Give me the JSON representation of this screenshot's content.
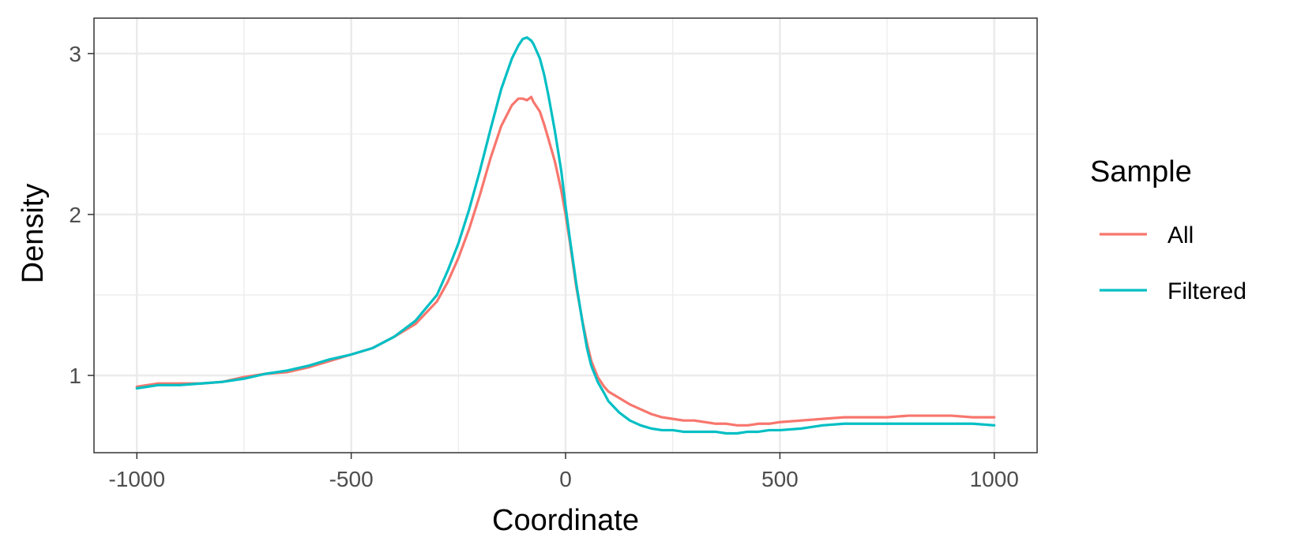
{
  "chart_data": {
    "type": "line",
    "title": "",
    "xlabel": "Coordinate",
    "ylabel": "Density",
    "xlim": [
      -1100,
      1100
    ],
    "ylim": [
      0.52,
      3.22
    ],
    "x_ticks": [
      -1000,
      -500,
      0,
      500,
      1000
    ],
    "x_tick_labels": [
      "-1000",
      "-500",
      "0",
      "500",
      "1000"
    ],
    "y_ticks": [
      1,
      2,
      3
    ],
    "y_tick_labels": [
      "1",
      "2",
      "3"
    ],
    "grid": true,
    "legend": {
      "title": "Sample",
      "placement": "right"
    },
    "series": [
      {
        "name": "All",
        "color": "#F8766D",
        "x": [
          -1000,
          -950,
          -900,
          -850,
          -800,
          -750,
          -700,
          -650,
          -600,
          -550,
          -500,
          -450,
          -400,
          -350,
          -300,
          -275,
          -250,
          -225,
          -200,
          -175,
          -150,
          -125,
          -110,
          -100,
          -90,
          -80,
          -75,
          -60,
          -50,
          -40,
          -25,
          -10,
          0,
          10,
          25,
          40,
          50,
          60,
          75,
          90,
          100,
          125,
          150,
          175,
          200,
          225,
          250,
          275,
          300,
          325,
          350,
          375,
          400,
          425,
          450,
          475,
          500,
          550,
          600,
          650,
          700,
          750,
          800,
          850,
          900,
          950,
          1000
        ],
        "values": [
          0.93,
          0.95,
          0.95,
          0.95,
          0.96,
          0.99,
          1.01,
          1.02,
          1.05,
          1.09,
          1.13,
          1.17,
          1.24,
          1.32,
          1.46,
          1.58,
          1.73,
          1.91,
          2.12,
          2.35,
          2.55,
          2.68,
          2.72,
          2.72,
          2.71,
          2.73,
          2.7,
          2.64,
          2.56,
          2.47,
          2.33,
          2.15,
          2.0,
          1.83,
          1.55,
          1.33,
          1.2,
          1.09,
          0.99,
          0.93,
          0.9,
          0.86,
          0.82,
          0.79,
          0.76,
          0.74,
          0.73,
          0.72,
          0.72,
          0.71,
          0.7,
          0.7,
          0.69,
          0.69,
          0.7,
          0.7,
          0.71,
          0.72,
          0.73,
          0.74,
          0.74,
          0.74,
          0.75,
          0.75,
          0.75,
          0.74,
          0.74
        ]
      },
      {
        "name": "Filtered",
        "color": "#00BFC4",
        "x": [
          -1000,
          -950,
          -900,
          -850,
          -800,
          -750,
          -700,
          -650,
          -600,
          -550,
          -500,
          -450,
          -400,
          -350,
          -300,
          -275,
          -250,
          -225,
          -200,
          -175,
          -150,
          -125,
          -110,
          -100,
          -90,
          -80,
          -75,
          -60,
          -50,
          -40,
          -25,
          -10,
          0,
          10,
          25,
          40,
          50,
          60,
          75,
          90,
          100,
          125,
          150,
          175,
          200,
          225,
          250,
          275,
          300,
          325,
          350,
          375,
          400,
          425,
          450,
          475,
          500,
          550,
          600,
          650,
          700,
          750,
          800,
          850,
          900,
          950,
          1000
        ],
        "values": [
          0.92,
          0.94,
          0.94,
          0.95,
          0.96,
          0.98,
          1.01,
          1.03,
          1.06,
          1.1,
          1.13,
          1.17,
          1.24,
          1.34,
          1.5,
          1.65,
          1.82,
          2.03,
          2.27,
          2.53,
          2.78,
          2.97,
          3.05,
          3.09,
          3.1,
          3.08,
          3.06,
          2.97,
          2.87,
          2.74,
          2.52,
          2.27,
          2.05,
          1.85,
          1.57,
          1.32,
          1.17,
          1.06,
          0.96,
          0.89,
          0.84,
          0.77,
          0.72,
          0.69,
          0.67,
          0.66,
          0.66,
          0.65,
          0.65,
          0.65,
          0.65,
          0.64,
          0.64,
          0.65,
          0.65,
          0.66,
          0.66,
          0.67,
          0.69,
          0.7,
          0.7,
          0.7,
          0.7,
          0.7,
          0.7,
          0.7,
          0.69
        ]
      }
    ]
  }
}
